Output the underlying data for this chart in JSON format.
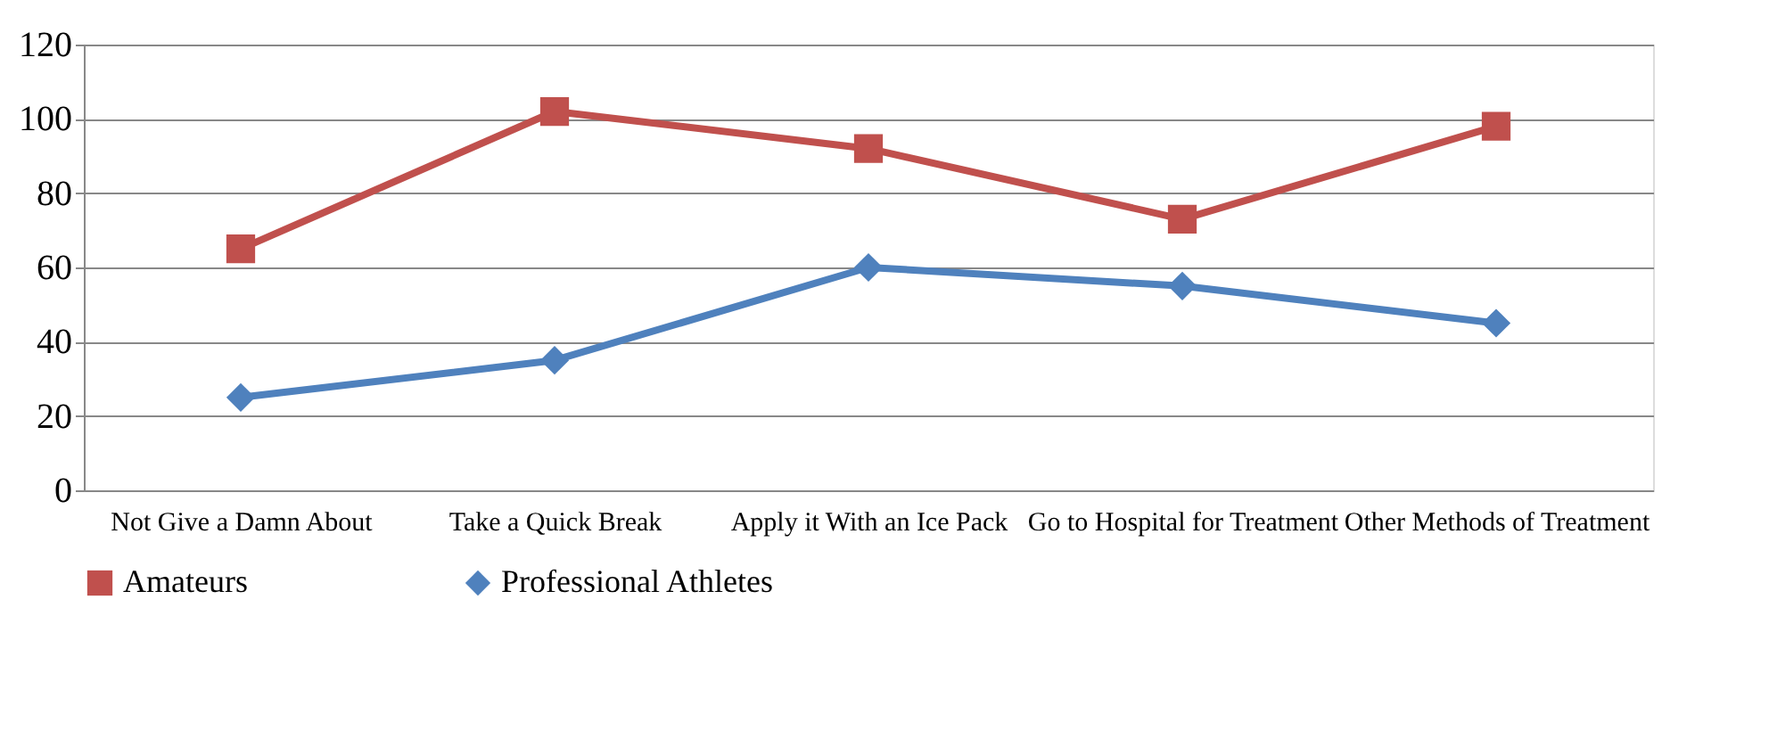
{
  "chart_data": {
    "type": "line",
    "categories": [
      "Not Give a Damn About",
      "Take a Quick Break",
      "Apply it With an Ice Pack",
      "Go to Hospital for Treatment",
      "Other Methods of Treatment"
    ],
    "series": [
      {
        "name": "Amateurs",
        "color": "#c0504d",
        "marker": "square",
        "values": [
          65,
          102,
          92,
          73,
          98
        ]
      },
      {
        "name": "Professional Athletes",
        "color": "#4f81bd",
        "marker": "diamond",
        "values": [
          25,
          35,
          60,
          55,
          45
        ]
      }
    ],
    "ylim": [
      0,
      120
    ],
    "yticks": [
      0,
      20,
      40,
      60,
      80,
      100,
      120
    ],
    "grid": "y",
    "legend": "bottom",
    "line_style": "solid"
  }
}
